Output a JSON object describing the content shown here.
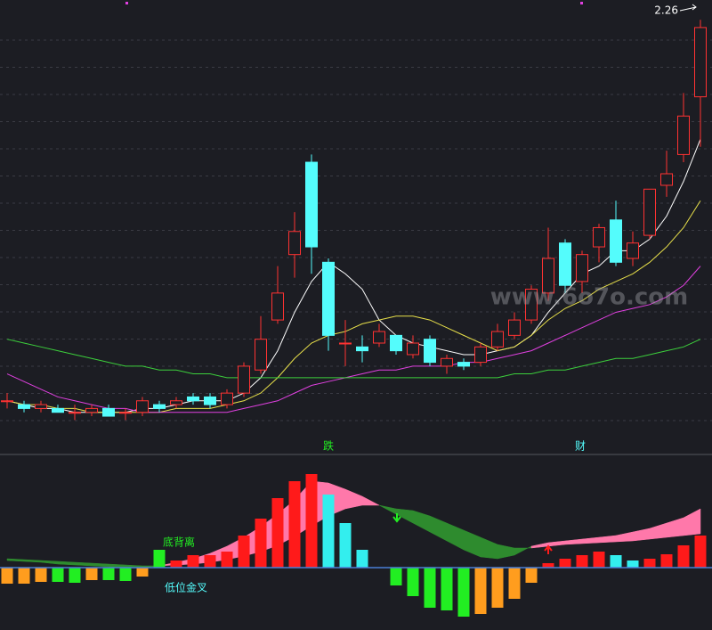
{
  "watermark": "www.6o7o.com",
  "chart_data": [
    {
      "type": "candlestick",
      "ylim": [
        1.2,
        2.3
      ],
      "up_color": "#ff3232",
      "down_color": "#54fcfc",
      "open": [
        1.27,
        1.26,
        1.25,
        1.25,
        1.24,
        1.24,
        1.25,
        1.24,
        1.24,
        1.26,
        1.26,
        1.28,
        1.28,
        1.26,
        1.29,
        1.35,
        1.48,
        1.65,
        1.89,
        1.63,
        1.42,
        1.41,
        1.42,
        1.44,
        1.39,
        1.43,
        1.36,
        1.37,
        1.37,
        1.41,
        1.44,
        1.48,
        1.55,
        1.68,
        1.58,
        1.67,
        1.74,
        1.64,
        1.7,
        1.83,
        1.91,
        2.06
      ],
      "close": [
        1.27,
        1.25,
        1.26,
        1.24,
        1.24,
        1.25,
        1.23,
        1.24,
        1.27,
        1.25,
        1.27,
        1.27,
        1.26,
        1.29,
        1.36,
        1.43,
        1.55,
        1.71,
        1.67,
        1.44,
        1.42,
        1.4,
        1.45,
        1.4,
        1.42,
        1.37,
        1.38,
        1.36,
        1.41,
        1.45,
        1.48,
        1.56,
        1.64,
        1.57,
        1.65,
        1.72,
        1.63,
        1.68,
        1.82,
        1.86,
        2.01,
        2.24
      ],
      "high": [
        1.29,
        1.27,
        1.27,
        1.26,
        1.26,
        1.26,
        1.26,
        1.25,
        1.28,
        1.27,
        1.28,
        1.29,
        1.29,
        1.3,
        1.37,
        1.49,
        1.62,
        1.76,
        1.91,
        1.64,
        1.48,
        1.44,
        1.47,
        1.44,
        1.44,
        1.44,
        1.39,
        1.38,
        1.42,
        1.47,
        1.5,
        1.57,
        1.72,
        1.69,
        1.66,
        1.73,
        1.79,
        1.71,
        1.82,
        1.92,
        2.07,
        2.26
      ],
      "low": [
        1.25,
        1.24,
        1.24,
        1.24,
        1.22,
        1.23,
        1.23,
        1.22,
        1.23,
        1.24,
        1.25,
        1.26,
        1.25,
        1.25,
        1.28,
        1.34,
        1.47,
        1.59,
        1.6,
        1.4,
        1.36,
        1.37,
        1.41,
        1.39,
        1.38,
        1.36,
        1.34,
        1.35,
        1.36,
        1.4,
        1.43,
        1.47,
        1.53,
        1.55,
        1.55,
        1.63,
        1.62,
        1.62,
        1.69,
        1.8,
        1.89,
        1.93
      ],
      "series": [
        {
          "color": "#ffffff",
          "values": [
            1.27,
            1.26,
            1.25,
            1.25,
            1.24,
            1.24,
            1.24,
            1.24,
            1.25,
            1.25,
            1.26,
            1.27,
            1.27,
            1.27,
            1.29,
            1.33,
            1.4,
            1.5,
            1.58,
            1.63,
            1.6,
            1.56,
            1.48,
            1.44,
            1.42,
            1.41,
            1.4,
            1.39,
            1.39,
            1.4,
            1.41,
            1.44,
            1.5,
            1.55,
            1.6,
            1.62,
            1.66,
            1.66,
            1.69,
            1.75,
            1.84,
            1.95
          ]
        },
        {
          "color": "#e8e04a",
          "values": [
            1.27,
            1.26,
            1.26,
            1.25,
            1.25,
            1.24,
            1.24,
            1.24,
            1.24,
            1.24,
            1.25,
            1.25,
            1.25,
            1.26,
            1.27,
            1.29,
            1.33,
            1.38,
            1.42,
            1.44,
            1.45,
            1.47,
            1.48,
            1.49,
            1.49,
            1.48,
            1.46,
            1.44,
            1.42,
            1.4,
            1.41,
            1.44,
            1.48,
            1.51,
            1.53,
            1.56,
            1.58,
            1.6,
            1.63,
            1.67,
            1.72,
            1.79
          ]
        },
        {
          "color": "#e040e0",
          "values": [
            1.34,
            1.32,
            1.3,
            1.28,
            1.27,
            1.26,
            1.25,
            1.25,
            1.24,
            1.24,
            1.24,
            1.24,
            1.24,
            1.24,
            1.25,
            1.26,
            1.27,
            1.29,
            1.31,
            1.32,
            1.33,
            1.34,
            1.35,
            1.35,
            1.36,
            1.36,
            1.36,
            1.37,
            1.37,
            1.38,
            1.39,
            1.4,
            1.42,
            1.44,
            1.46,
            1.48,
            1.5,
            1.51,
            1.52,
            1.54,
            1.57,
            1.62
          ]
        },
        {
          "color": "#3ccf3c",
          "values": [
            1.43,
            1.42,
            1.41,
            1.4,
            1.39,
            1.38,
            1.37,
            1.36,
            1.36,
            1.35,
            1.35,
            1.34,
            1.34,
            1.33,
            1.33,
            1.33,
            1.33,
            1.33,
            1.33,
            1.33,
            1.33,
            1.33,
            1.33,
            1.33,
            1.33,
            1.33,
            1.33,
            1.33,
            1.33,
            1.33,
            1.34,
            1.34,
            1.35,
            1.35,
            1.36,
            1.37,
            1.38,
            1.38,
            1.39,
            1.4,
            1.41,
            1.43
          ]
        }
      ],
      "signals": [
        "跌",
        "财"
      ]
    },
    {
      "type": "bar",
      "ylim": [
        -63,
        117
      ],
      "values": [
        -18,
        -18,
        -16,
        -16,
        -17,
        -14,
        -14,
        -15,
        -10,
        20,
        8,
        14,
        14,
        18,
        36,
        55,
        78,
        97,
        105,
        82,
        50,
        20,
        0,
        -20,
        -32,
        -45,
        -48,
        -55,
        -52,
        -45,
        -35,
        -17,
        5,
        10,
        14,
        18,
        14,
        8,
        10,
        15,
        25,
        36
      ],
      "colors": [
        "#ff9d1e",
        "#ff9d1e",
        "#ff9d1e",
        "#22ee22",
        "#22ee22",
        "#ff9d1e",
        "#22ee22",
        "#22ee22",
        "#ff9d1e",
        "#22ee22",
        "#ff1a1a",
        "#ff1a1a",
        "#ff1a1a",
        "#ff1a1a",
        "#ff1a1a",
        "#ff1a1a",
        "#ff1a1a",
        "#ff1a1a",
        "#ff1a1a",
        "#33eeee",
        "#33eeee",
        "#33eeee",
        "#33eeee",
        "#22ee22",
        "#22ee22",
        "#22ee22",
        "#22ee22",
        "#22ee22",
        "#ff9d1e",
        "#ff9d1e",
        "#ff9d1e",
        "#ff9d1e",
        "#ff1a1a",
        "#ff1a1a",
        "#ff1a1a",
        "#ff1a1a",
        "#33eeee",
        "#33eeee",
        "#ff1a1a",
        "#ff1a1a",
        "#ff1a1a",
        "#ff1a1a"
      ],
      "dif": [
        8,
        7,
        6,
        4,
        3,
        2,
        1,
        0,
        0,
        2,
        6,
        10,
        16,
        24,
        34,
        46,
        60,
        76,
        97,
        95,
        88,
        80,
        70,
        60,
        50,
        40,
        30,
        20,
        12,
        10,
        14,
        24,
        28,
        30,
        32,
        34,
        36,
        40,
        44,
        50,
        56,
        66
      ],
      "dea": [
        10,
        9,
        8,
        7,
        6,
        5,
        4,
        3,
        2,
        2,
        3,
        4,
        6,
        9,
        13,
        18,
        25,
        35,
        47,
        58,
        66,
        70,
        70,
        66,
        64,
        58,
        50,
        42,
        34,
        26,
        22,
        22,
        24,
        26,
        27,
        28,
        29,
        30,
        32,
        34,
        36,
        38
      ],
      "ribbon_up_color": "#ff78aa",
      "ribbon_down_color": "#2e8b2e",
      "zero_color": "#4a7fd6",
      "annotations": [
        "底背离",
        "低位金叉"
      ]
    }
  ]
}
